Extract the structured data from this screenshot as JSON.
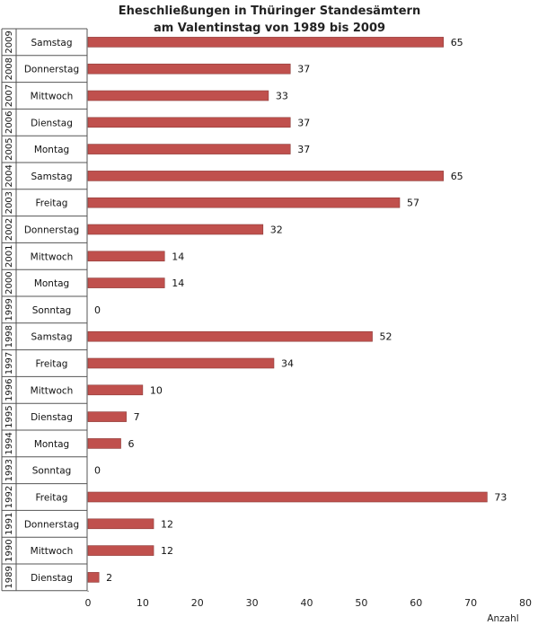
{
  "chart_data": {
    "type": "bar",
    "orientation": "horizontal",
    "title_line1": "Eheschließungen in Thüringer Standesämtern",
    "title_line2": "am Valentinstag von 1989 bis 2009",
    "xlabel": "Anzahl",
    "xlim": [
      0,
      80
    ],
    "xticks": [
      0,
      10,
      20,
      30,
      40,
      50,
      60,
      70,
      80
    ],
    "grid": false,
    "bar_color": "#c0504d",
    "rows": [
      {
        "year": "2009",
        "weekday": "Samstag",
        "value": 65
      },
      {
        "year": "2008",
        "weekday": "Donnerstag",
        "value": 37
      },
      {
        "year": "2007",
        "weekday": "Mittwoch",
        "value": 33
      },
      {
        "year": "2006",
        "weekday": "Dienstag",
        "value": 37
      },
      {
        "year": "2005",
        "weekday": "Montag",
        "value": 37
      },
      {
        "year": "2004",
        "weekday": "Samstag",
        "value": 65
      },
      {
        "year": "2003",
        "weekday": "Freitag",
        "value": 57
      },
      {
        "year": "2002",
        "weekday": "Donnerstag",
        "value": 32
      },
      {
        "year": "2001",
        "weekday": "Mittwoch",
        "value": 14
      },
      {
        "year": "2000",
        "weekday": "Montag",
        "value": 14
      },
      {
        "year": "1999",
        "weekday": "Sonntag",
        "value": 0
      },
      {
        "year": "1998",
        "weekday": "Samstag",
        "value": 52
      },
      {
        "year": "1997",
        "weekday": "Freitag",
        "value": 34
      },
      {
        "year": "1996",
        "weekday": "Mittwoch",
        "value": 10
      },
      {
        "year": "1995",
        "weekday": "Dienstag",
        "value": 7
      },
      {
        "year": "1994",
        "weekday": "Montag",
        "value": 6
      },
      {
        "year": "1993",
        "weekday": "Sonntag",
        "value": 0
      },
      {
        "year": "1992",
        "weekday": "Freitag",
        "value": 73
      },
      {
        "year": "1991",
        "weekday": "Donnerstag",
        "value": 12
      },
      {
        "year": "1990",
        "weekday": "Mittwoch",
        "value": 12
      },
      {
        "year": "1989",
        "weekday": "Dienstag",
        "value": 2
      }
    ]
  }
}
